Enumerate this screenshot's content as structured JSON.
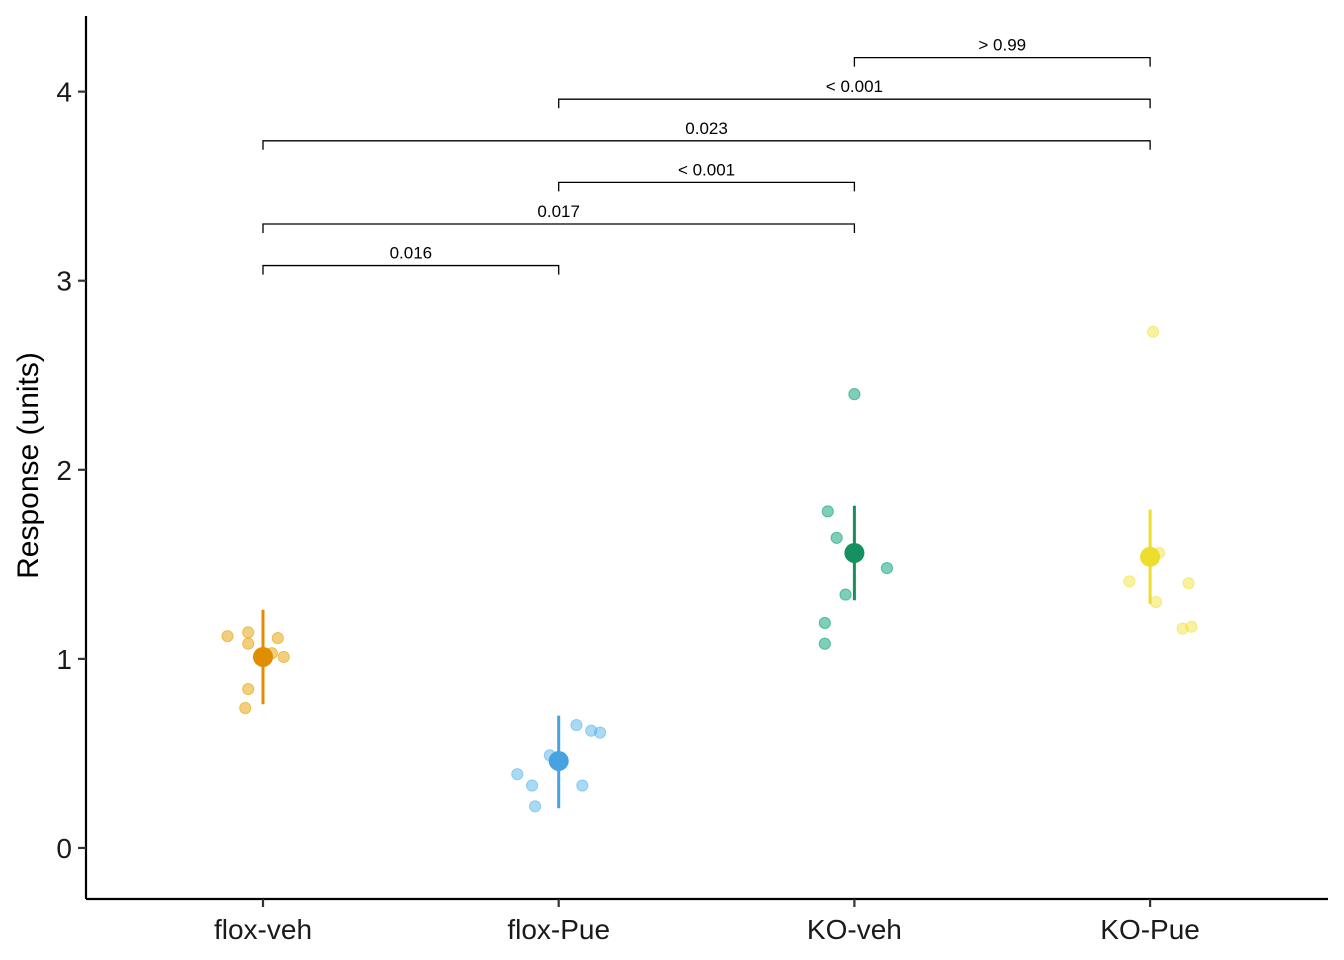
{
  "chart_data": {
    "type": "scatter",
    "title": "",
    "xlabel": "",
    "ylabel": "Response (units)",
    "ylim": [
      -0.27,
      4.4
    ],
    "yticks": [
      0,
      1,
      2,
      3,
      4
    ],
    "grid": false,
    "legend": "none",
    "categories": [
      "flox-veh",
      "flox-Pue",
      "KO-veh",
      "KO-Pue"
    ],
    "colors": {
      "flox-veh": "#E69F00",
      "flox-Pue": "#56B4E9",
      "KO-veh": "#009E73",
      "KO-Pue": "#F0E442"
    },
    "summary_colors": {
      "flox-veh": "#E08E00",
      "flox-Pue": "#46A2E0",
      "KO-veh": "#17905F",
      "KO-Pue": "#EDDD2C"
    },
    "groups": [
      {
        "name": "flox-veh",
        "mean": 1.01,
        "ci_low": 0.76,
        "ci_high": 1.26,
        "points": [
          {
            "jitter": -0.12,
            "y": 1.12
          },
          {
            "jitter": -0.05,
            "y": 1.14
          },
          {
            "jitter": -0.05,
            "y": 1.08
          },
          {
            "jitter": 0.05,
            "y": 1.11
          },
          {
            "jitter": 0.03,
            "y": 1.03
          },
          {
            "jitter": 0.07,
            "y": 1.01
          },
          {
            "jitter": -0.05,
            "y": 0.84
          },
          {
            "jitter": -0.06,
            "y": 0.74
          }
        ]
      },
      {
        "name": "flox-Pue",
        "mean": 0.46,
        "ci_low": 0.21,
        "ci_high": 0.7,
        "points": [
          {
            "jitter": 0.06,
            "y": 0.65
          },
          {
            "jitter": 0.11,
            "y": 0.62
          },
          {
            "jitter": 0.14,
            "y": 0.61
          },
          {
            "jitter": -0.03,
            "y": 0.49
          },
          {
            "jitter": -0.14,
            "y": 0.39
          },
          {
            "jitter": -0.09,
            "y": 0.33
          },
          {
            "jitter": 0.08,
            "y": 0.33
          },
          {
            "jitter": -0.08,
            "y": 0.22
          }
        ]
      },
      {
        "name": "KO-veh",
        "mean": 1.56,
        "ci_low": 1.31,
        "ci_high": 1.81,
        "points": [
          {
            "jitter": 0.0,
            "y": 2.4
          },
          {
            "jitter": -0.09,
            "y": 1.78
          },
          {
            "jitter": -0.06,
            "y": 1.64
          },
          {
            "jitter": 0.11,
            "y": 1.48
          },
          {
            "jitter": -0.03,
            "y": 1.34
          },
          {
            "jitter": -0.1,
            "y": 1.19
          },
          {
            "jitter": -0.1,
            "y": 1.08
          }
        ]
      },
      {
        "name": "KO-Pue",
        "mean": 1.54,
        "ci_low": 1.29,
        "ci_high": 1.79,
        "points": [
          {
            "jitter": 0.01,
            "y": 2.73
          },
          {
            "jitter": 0.03,
            "y": 1.56
          },
          {
            "jitter": -0.07,
            "y": 1.41
          },
          {
            "jitter": 0.13,
            "y": 1.4
          },
          {
            "jitter": 0.02,
            "y": 1.3
          },
          {
            "jitter": 0.14,
            "y": 1.17
          },
          {
            "jitter": 0.11,
            "y": 1.16
          }
        ]
      }
    ],
    "comparisons": [
      {
        "from": "flox-veh",
        "to": "flox-Pue",
        "y": 3.08,
        "label": "0.016"
      },
      {
        "from": "flox-veh",
        "to": "KO-veh",
        "y": 3.3,
        "label": "0.017"
      },
      {
        "from": "flox-Pue",
        "to": "KO-veh",
        "y": 3.52,
        "label": "< 0.001"
      },
      {
        "from": "flox-veh",
        "to": "KO-Pue",
        "y": 3.74,
        "label": "0.023"
      },
      {
        "from": "flox-Pue",
        "to": "KO-Pue",
        "y": 3.96,
        "label": "< 0.001"
      },
      {
        "from": "KO-veh",
        "to": "KO-Pue",
        "y": 4.18,
        "label": "> 0.99"
      }
    ]
  }
}
